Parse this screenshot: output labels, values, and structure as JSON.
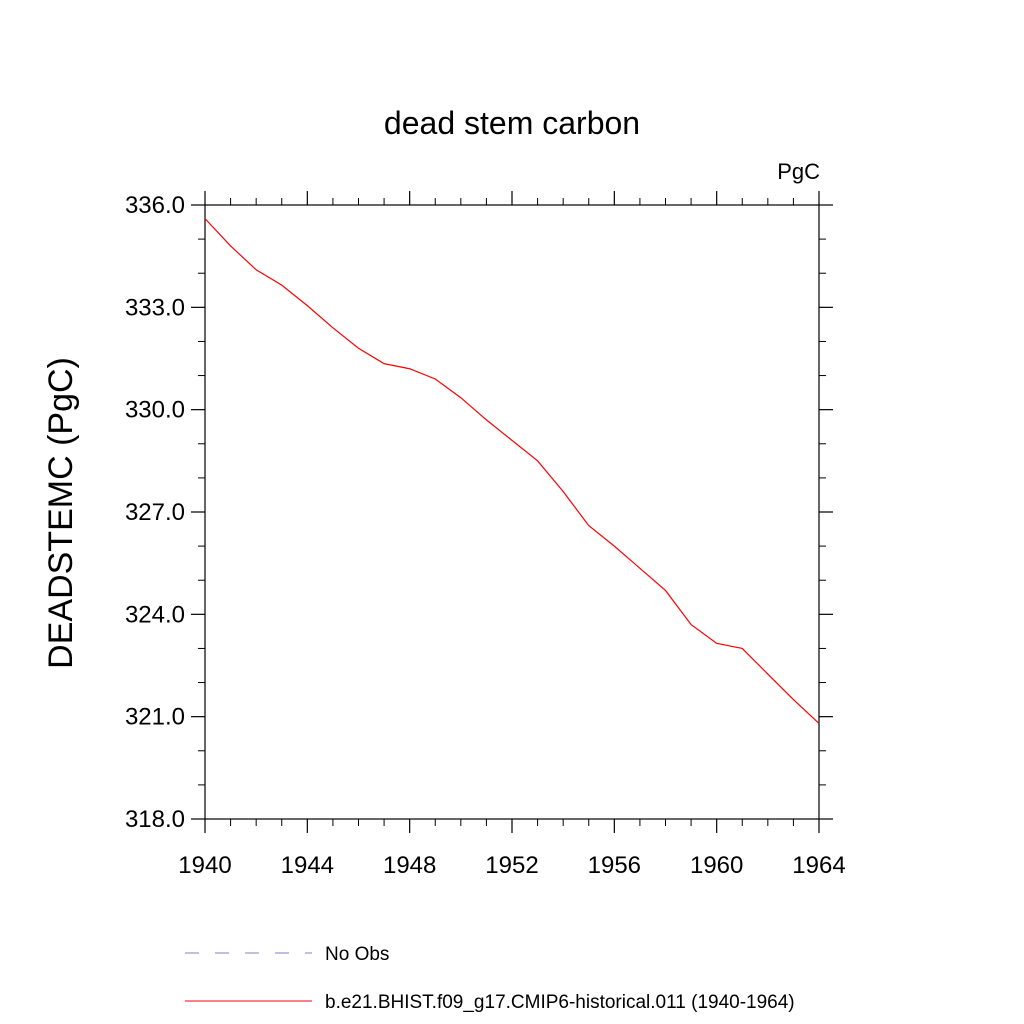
{
  "chart_data": {
    "type": "line",
    "title": "dead stem carbon",
    "units_label": "PgC",
    "ylabel": "DEADSTEMC  (PgC)",
    "xlabel": "",
    "xlim": [
      1940,
      1964
    ],
    "ylim": [
      318.0,
      336.0
    ],
    "x_ticks": [
      1940,
      1944,
      1948,
      1952,
      1956,
      1960,
      1964
    ],
    "x_tick_labels": [
      "1940",
      "1944",
      "1948",
      "1952",
      "1956",
      "1960",
      "1964"
    ],
    "y_ticks": [
      318.0,
      321.0,
      324.0,
      327.0,
      330.0,
      333.0,
      336.0
    ],
    "y_tick_labels": [
      "318.0",
      "321.0",
      "324.0",
      "327.0",
      "330.0",
      "333.0",
      "336.0"
    ],
    "grid": false,
    "legend_position": "bottom",
    "series": [
      {
        "name": "b.e21.BHIST.f09_g17.CMIP6-historical.011 (1940-1964)",
        "color": "#ff0000",
        "style": "solid",
        "x": [
          1940,
          1941,
          1942,
          1943,
          1944,
          1945,
          1946,
          1947,
          1948,
          1949,
          1950,
          1951,
          1952,
          1953,
          1954,
          1955,
          1956,
          1957,
          1958,
          1959,
          1960,
          1961,
          1962,
          1963,
          1964
        ],
        "y": [
          335.6,
          334.8,
          334.1,
          333.65,
          333.05,
          332.4,
          331.8,
          331.35,
          331.2,
          330.9,
          330.35,
          329.7,
          329.1,
          328.5,
          327.6,
          326.6,
          326.0,
          325.35,
          324.7,
          323.7,
          323.15,
          323.0,
          322.25,
          321.5,
          320.8
        ]
      }
    ],
    "legend": [
      {
        "label": "No Obs",
        "color": "#8080c8",
        "style": "dashed"
      },
      {
        "label": "b.e21.BHIST.f09_g17.CMIP6-historical.011 (1940-1964)",
        "color": "#ff0000",
        "style": "solid"
      }
    ]
  }
}
